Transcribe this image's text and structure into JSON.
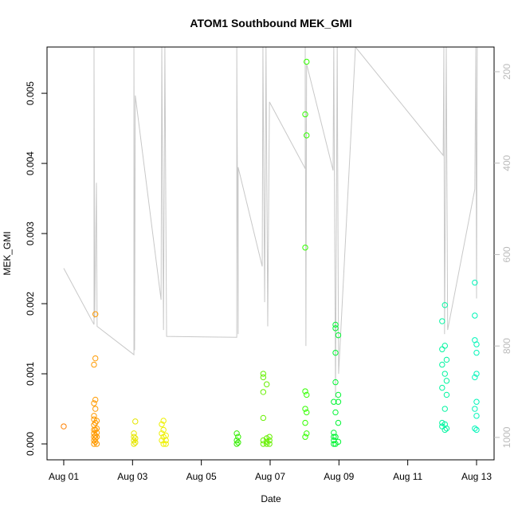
{
  "chart_data": {
    "type": "scatter",
    "title": "ATOM1 Southbound MEK_GMI",
    "x_label": "Date",
    "y_label": "MEK_GMI",
    "xlim": [
      0.514,
      13.51
    ],
    "ylim": [
      -0.000227,
      0.00566
    ],
    "y2lim": [
      1049,
      146
    ],
    "xticks": [
      {
        "value": 1,
        "label": "Aug 01"
      },
      {
        "value": 3,
        "label": "Aug 03"
      },
      {
        "value": 5,
        "label": "Aug 05"
      },
      {
        "value": 7,
        "label": "Aug 07"
      },
      {
        "value": 9,
        "label": "Aug 09"
      },
      {
        "value": 11,
        "label": "Aug 11"
      },
      {
        "value": 13,
        "label": "Aug 13"
      }
    ],
    "yticks": [
      {
        "value": 0,
        "label": "0.000"
      },
      {
        "value": 0.001,
        "label": "0.001"
      },
      {
        "value": 0.002,
        "label": "0.002"
      },
      {
        "value": 0.003,
        "label": "0.003"
      },
      {
        "value": 0.004,
        "label": "0.004"
      },
      {
        "value": 0.005,
        "label": "0.005"
      }
    ],
    "y2ticks": [
      200,
      400,
      600,
      800,
      1000
    ],
    "line": {
      "axis": "y2",
      "color": "#c8c8c8",
      "x": [
        1.0,
        1.88,
        1.88,
        1.9,
        1.95,
        1.97,
        3.04,
        3.04,
        3.06,
        3.08,
        3.83,
        3.85,
        3.9,
        3.94,
        3.99,
        6.03,
        6.03,
        6.07,
        6.07,
        6.77,
        6.79,
        6.84,
        6.88,
        6.93,
        6.98,
        8.02,
        8.02,
        8.04,
        8.06,
        8.83,
        8.85,
        8.9,
        8.95,
        8.99,
        9.48,
        12.03,
        12.05,
        12.07,
        12.12,
        12.16,
        12.95,
        12.98,
        13.0,
        13.02
      ],
      "values": [
        630,
        753,
        146,
        739,
        443,
        757,
        819,
        146,
        809,
        252,
        699,
        146,
        765,
        146,
        779,
        781,
        146,
        774,
        409,
        626,
        146,
        704,
        146,
        757,
        266,
        412,
        146,
        800,
        183,
        416,
        146,
        913,
        146,
        861,
        146,
        383,
        146,
        774,
        146,
        765,
        457,
        146,
        696,
        146
      ]
    },
    "series": [
      {
        "color": "#ff8000",
        "x": [
          1.0
        ],
        "values": [
          0.00025
        ]
      },
      {
        "color": "#ff9a00",
        "x": [
          1.88,
          1.88,
          1.88,
          1.88,
          1.88,
          1.88,
          1.88,
          1.88,
          1.88,
          1.88,
          1.92,
          1.92,
          1.92,
          1.92,
          1.92,
          1.92,
          1.92,
          1.92,
          1.92,
          1.96,
          1.96,
          1.96,
          1.96,
          1.96
        ],
        "values": [
          0.0,
          5e-05,
          0.0001,
          0.00015,
          0.0002,
          0.00027,
          0.00035,
          0.0004,
          0.00058,
          0.00113,
          3e-05,
          8e-05,
          0.00012,
          0.0002,
          0.0003,
          0.0005,
          0.00063,
          0.00122,
          0.00185,
          0.0,
          0.0001,
          0.00016,
          0.00022,
          0.00033
        ]
      },
      {
        "color": "#e6e600",
        "x": [
          3.04,
          3.04,
          3.04,
          3.04,
          3.08,
          3.08,
          3.08
        ],
        "values": [
          0.0,
          5e-05,
          0.0001,
          0.00015,
          2e-05,
          8e-05,
          0.00032
        ]
      },
      {
        "color": "#eef000",
        "x": [
          3.85,
          3.85,
          3.85,
          3.9,
          3.9,
          3.9,
          3.9,
          3.97,
          3.97,
          3.97
        ],
        "values": [
          5e-05,
          0.00015,
          0.00028,
          0.0,
          0.0001,
          0.0002,
          0.00033,
          0.0,
          5e-05,
          0.00012
        ]
      },
      {
        "color": "#33ee00",
        "x": [
          6.03,
          6.03,
          6.03,
          6.07,
          6.07
        ],
        "values": [
          0.0,
          5e-05,
          0.00015,
          2e-05,
          0.0001
        ]
      },
      {
        "color": "#66f000",
        "x": [
          6.8,
          6.8,
          6.8,
          6.8,
          6.8,
          6.8,
          6.9,
          6.9,
          6.9,
          6.9,
          6.98,
          6.98,
          6.98
        ],
        "values": [
          0.0,
          5e-05,
          0.00074,
          0.00095,
          0.001,
          0.00037,
          0.0,
          3e-05,
          8e-05,
          0.00085,
          0.0,
          5e-05,
          0.0001
        ]
      },
      {
        "color": "#33ff00",
        "x": [
          8.02,
          8.02,
          8.02,
          8.02,
          8.02,
          8.02,
          8.06,
          8.06,
          8.06,
          8.06,
          8.06
        ],
        "values": [
          0.0001,
          0.0003,
          0.0005,
          0.00075,
          0.0028,
          0.0047,
          0.00015,
          0.00045,
          0.0007,
          0.0044,
          0.00545
        ]
      },
      {
        "color": "#00f533",
        "x": [
          8.85,
          8.85,
          8.85,
          8.85,
          8.85,
          8.9,
          8.9,
          8.9,
          8.9,
          8.9,
          8.9,
          8.9,
          8.98,
          8.98,
          8.98,
          8.98,
          8.98
        ],
        "values": [
          0.0,
          5e-05,
          0.0001,
          0.00016,
          0.0006,
          0.0,
          0.0001,
          0.00045,
          0.00088,
          0.0013,
          0.00165,
          0.0017,
          3e-05,
          0.0003,
          0.0006,
          0.0007,
          0.00155
        ]
      },
      {
        "color": "#00f5a0",
        "x": [
          12.0,
          12.0,
          12.0,
          12.0,
          12.0,
          12.0,
          12.08,
          12.08,
          12.08,
          12.08,
          12.08,
          12.08,
          12.13,
          12.13,
          12.13,
          12.13
        ],
        "values": [
          0.00025,
          0.0003,
          0.0008,
          0.00113,
          0.00135,
          0.00175,
          0.0002,
          0.00028,
          0.0005,
          0.001,
          0.0014,
          0.00198,
          0.00022,
          0.0007,
          0.0009,
          0.0012
        ]
      },
      {
        "color": "#00f5b8",
        "x": [
          12.95,
          12.95,
          12.95,
          12.95,
          12.95,
          12.95,
          13.0,
          13.0,
          13.0,
          13.0,
          13.0,
          13.0
        ],
        "values": [
          0.00022,
          0.0005,
          0.00095,
          0.00148,
          0.00183,
          0.0023,
          0.0002,
          0.0004,
          0.0006,
          0.001,
          0.0013,
          0.00142
        ]
      }
    ]
  }
}
